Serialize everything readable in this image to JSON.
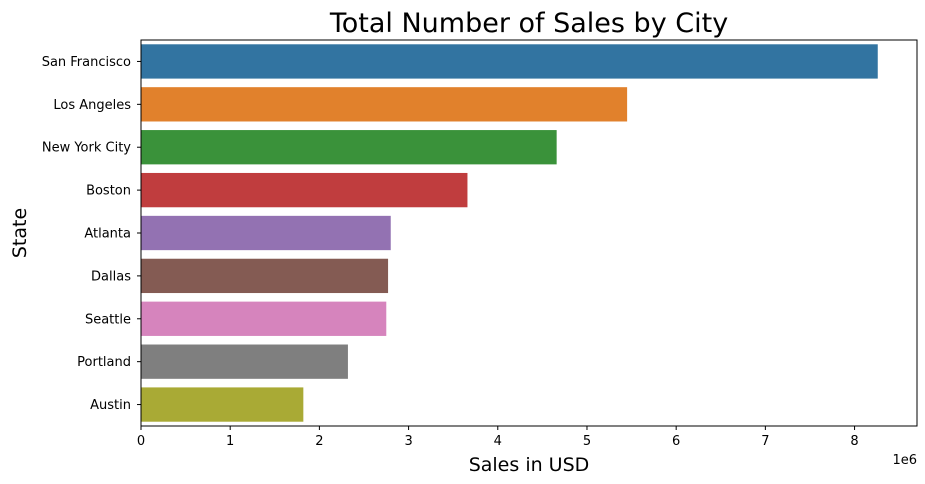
{
  "chart_data": {
    "type": "bar",
    "orientation": "horizontal",
    "title": "Total Number of Sales by City",
    "xlabel": "Sales in USD",
    "ylabel": "State",
    "x_scale_label": "1e6",
    "categories": [
      "San Francisco",
      "Los Angeles",
      "New York City",
      "Boston",
      "Atlanta",
      "Dallas",
      "Seattle",
      "Portland",
      "Austin"
    ],
    "values": [
      8.26,
      5.45,
      4.66,
      3.66,
      2.8,
      2.77,
      2.75,
      2.32,
      1.82
    ],
    "colors": [
      "#3274a1",
      "#e1812c",
      "#3a923a",
      "#c03d3e",
      "#9372b2",
      "#845b53",
      "#d684bd",
      "#7f7f7f",
      "#a9aa35"
    ],
    "xlim": [
      0,
      8.7
    ],
    "xticks": [
      "0",
      "1",
      "2",
      "3",
      "4",
      "5",
      "6",
      "7",
      "8"
    ],
    "grid": false,
    "legend": "none"
  }
}
